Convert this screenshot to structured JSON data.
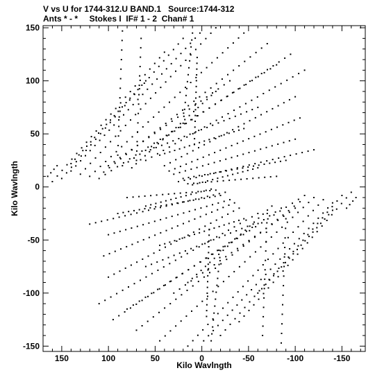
{
  "chart_data": {
    "type": "scatter",
    "title": "V vs U for 1744-312.U BAND.1   Source:1744-312",
    "subtitle": "Ants * - *     Stokes I  IF# 1 - 2  Chan# 1",
    "xlabel": "Kilo Wavlngth",
    "ylabel": "Kilo Wavlngth",
    "xlim": [
      170,
      -175
    ],
    "ylim": [
      -155,
      152
    ],
    "x_inverted": true,
    "xticks": [
      150,
      100,
      50,
      0,
      -50,
      -100,
      -150
    ],
    "xtick_labels": [
      "150",
      "100",
      "50",
      "0",
      "-50",
      "-100",
      "-150"
    ],
    "yticks": [
      150,
      100,
      50,
      0,
      -50,
      -100,
      -150
    ],
    "ytick_labels": [
      "150",
      "100",
      "50",
      "0",
      "-50",
      "-100",
      "-150"
    ],
    "grid": false,
    "marker_color": "#000000",
    "baselines": [
      {
        "u0": 160,
        "v0": 5,
        "u1": 40,
        "v1": 127,
        "n": 24
      },
      {
        "u0": 150,
        "v0": 8,
        "u1": 20,
        "v1": 140,
        "n": 26
      },
      {
        "u0": 140,
        "v0": 15,
        "u1": 2,
        "v1": 145,
        "n": 28
      },
      {
        "u0": 130,
        "v0": 12,
        "u1": -15,
        "v1": 150,
        "n": 28
      },
      {
        "u0": 120,
        "v0": 10,
        "u1": -45,
        "v1": 145,
        "n": 30
      },
      {
        "u0": 105,
        "v0": 14,
        "u1": -70,
        "v1": 135,
        "n": 30
      },
      {
        "u0": 85,
        "v0": 20,
        "u1": -95,
        "v1": 125,
        "n": 30
      },
      {
        "u0": 60,
        "v0": 25,
        "u1": -110,
        "v1": 110,
        "n": 28
      },
      {
        "u0": 40,
        "v0": 20,
        "u1": -100,
        "v1": 85,
        "n": 24
      },
      {
        "u0": 35,
        "v0": 15,
        "u1": -105,
        "v1": 65,
        "n": 24
      },
      {
        "u0": 30,
        "v0": 12,
        "u1": -100,
        "v1": 45,
        "n": 22
      },
      {
        "u0": 20,
        "v0": 8,
        "u1": -90,
        "v1": 25,
        "n": 20
      },
      {
        "u0": 15,
        "v0": 3,
        "u1": -80,
        "v1": 10,
        "n": 16
      },
      {
        "u0": 8,
        "v0": 40,
        "u1": 5,
        "v1": 122,
        "n": 16
      },
      {
        "u0": 20,
        "v0": 60,
        "u1": 10,
        "v1": 145,
        "n": 14
      },
      {
        "u0": 90,
        "v0": 30,
        "u1": 85,
        "v1": 147,
        "n": 14
      },
      {
        "u0": 70,
        "v0": 25,
        "u1": 65,
        "v1": 140,
        "n": 14
      },
      {
        "u0": 100,
        "v0": 20,
        "u1": -30,
        "v1": 100,
        "n": 22
      },
      {
        "u0": 165,
        "v0": 10,
        "u1": 155,
        "v1": 20,
        "n": 4
      },
      {
        "u0": 55,
        "v0": 35,
        "u1": -60,
        "v1": 75,
        "n": 20
      },
      {
        "u0": 45,
        "v0": 30,
        "u1": -45,
        "v1": 55,
        "n": 18
      },
      {
        "u0": 110,
        "v0": 8,
        "u1": -80,
        "v1": 115,
        "n": 30
      },
      {
        "u0": 75,
        "v0": 18,
        "u1": -15,
        "v1": 90,
        "n": 20
      },
      {
        "u0": 25,
        "v0": 5,
        "u1": -120,
        "v1": 35,
        "n": 24
      },
      {
        "u0": 10,
        "v0": 2,
        "u1": -60,
        "v1": 18,
        "n": 14
      },
      {
        "u0": 140,
        "v0": 22,
        "u1": 60,
        "v1": 100,
        "n": 20
      }
    ]
  }
}
